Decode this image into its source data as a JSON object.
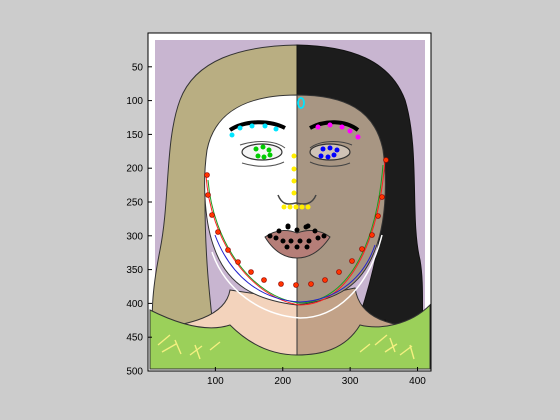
{
  "figure": {
    "background": "#cccccc",
    "axes_background": "#ffffff",
    "x_ticks": [
      100,
      200,
      300,
      400
    ],
    "y_ticks": [
      50,
      100,
      150,
      200,
      250,
      300,
      350,
      400,
      450,
      500
    ],
    "x_range": [
      0,
      420
    ],
    "y_range": [
      0,
      500
    ]
  },
  "image": {
    "description_icons": [
      "woman-face-icon"
    ],
    "colors": {
      "background_lavender": "#c8b5d0",
      "hair_left": "#b9ae82",
      "hair_right": "#1c1c1c",
      "face_left": "#ffffff",
      "face_right": "#a89683",
      "neck_left": "#f3d3bc",
      "neck_right": "#c2a288",
      "shirt": "#9bd05a",
      "lips": "#b57e78",
      "jaw_fit_red": "#ff2020",
      "jaw_fit_green": "#1f9b1f",
      "jaw_fit_blue": "#2222cc"
    }
  },
  "landmarks": {
    "left_eyebrow_color": "#00e5ff",
    "right_eyebrow_color": "#ff00ff",
    "left_eye_color": "#00cc00",
    "right_eye_color": "#0000ff",
    "nose_color": "#ffee00",
    "mouth_color": "#000000",
    "jaw_color": "#ff3300",
    "forehead_marker_color": "#00e5ff"
  }
}
